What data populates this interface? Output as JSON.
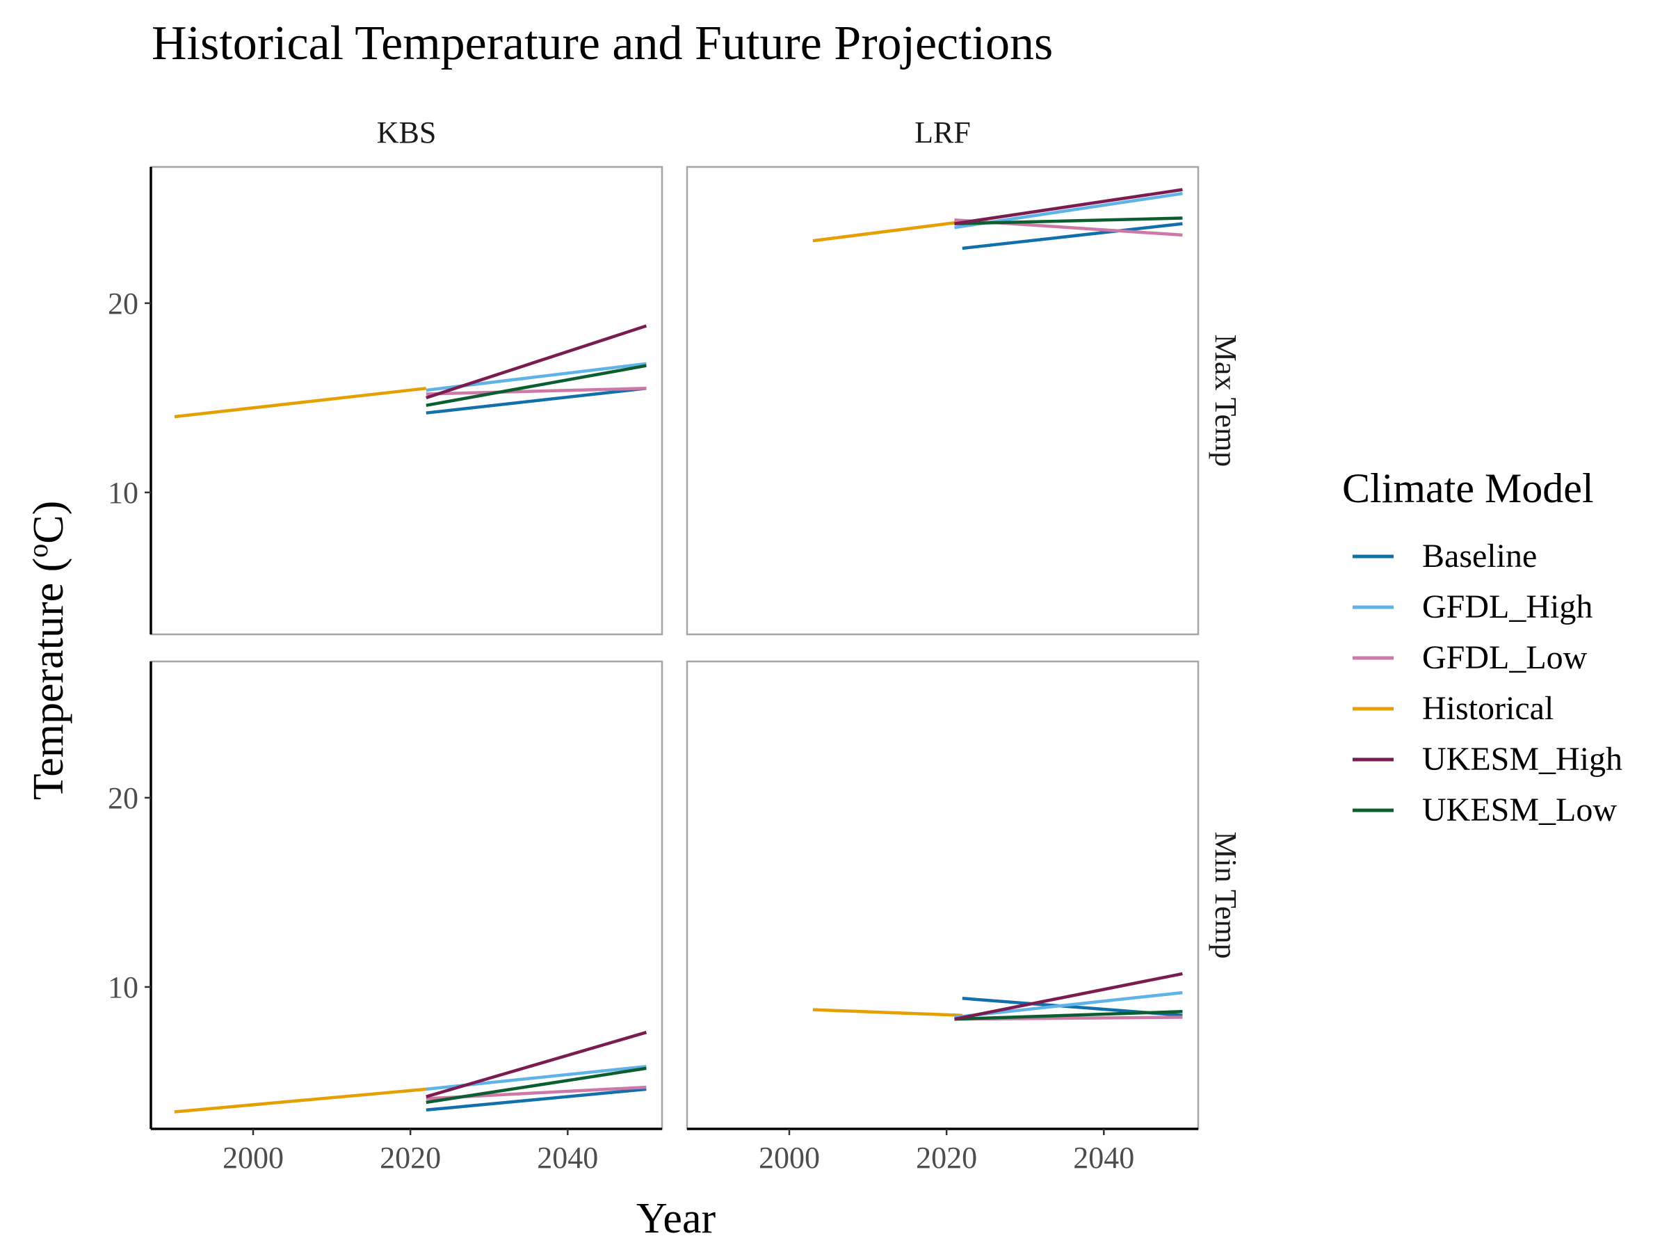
{
  "chart_data": {
    "type": "line",
    "title": "Historical Temperature and Future Projections",
    "xlabel": "Year",
    "ylabel_text": "Temperature (",
    "ylabel_degree": "o",
    "ylabel_unit": "C)",
    "xlim": [
      1987,
      2052
    ],
    "ylim": [
      2.5,
      27.2
    ],
    "x_ticks": [
      2000,
      2020,
      2040
    ],
    "y_ticks": [
      10,
      20
    ],
    "grid": false,
    "legend_position": "right",
    "legend_title": "Climate Model",
    "facet_columns": [
      "KBS",
      "LRF"
    ],
    "facet_rows": [
      "Max Temp",
      "Min Temp"
    ],
    "series_names": [
      "Baseline",
      "GFDL_High",
      "GFDL_Low",
      "Historical",
      "UKESM_High",
      "UKESM_Low"
    ],
    "series_colors": {
      "Baseline": "#1170AA",
      "GFDL_High": "#5FB3E6",
      "GFDL_Low": "#CC79A7",
      "Historical": "#E69F00",
      "UKESM_High": "#7A1C4F",
      "UKESM_Low": "#0B5E2F"
    },
    "panels": [
      {
        "col": "KBS",
        "row": "Max Temp",
        "series": [
          {
            "name": "Historical",
            "x": [
              1990,
              2022
            ],
            "y": [
              14.0,
              15.5
            ]
          },
          {
            "name": "Baseline",
            "x": [
              2022,
              2050
            ],
            "y": [
              14.2,
              15.5
            ]
          },
          {
            "name": "GFDL_High",
            "x": [
              2022,
              2050
            ],
            "y": [
              15.4,
              16.8
            ]
          },
          {
            "name": "GFDL_Low",
            "x": [
              2022,
              2050
            ],
            "y": [
              15.2,
              15.5
            ]
          },
          {
            "name": "UKESM_Low",
            "x": [
              2022,
              2050
            ],
            "y": [
              14.6,
              16.7
            ]
          },
          {
            "name": "UKESM_High",
            "x": [
              2022,
              2050
            ],
            "y": [
              15.0,
              18.8
            ]
          }
        ]
      },
      {
        "col": "LRF",
        "row": "Max Temp",
        "series": [
          {
            "name": "Historical",
            "x": [
              2003,
              2022
            ],
            "y": [
              23.3,
              24.3
            ]
          },
          {
            "name": "Baseline",
            "x": [
              2022,
              2050
            ],
            "y": [
              22.9,
              24.2
            ]
          },
          {
            "name": "GFDL_High",
            "x": [
              2021,
              2050
            ],
            "y": [
              24.0,
              25.8
            ]
          },
          {
            "name": "GFDL_Low",
            "x": [
              2021,
              2050
            ],
            "y": [
              24.4,
              23.6
            ]
          },
          {
            "name": "UKESM_Low",
            "x": [
              2021,
              2050
            ],
            "y": [
              24.2,
              24.5
            ]
          },
          {
            "name": "UKESM_High",
            "x": [
              2021,
              2050
            ],
            "y": [
              24.2,
              26.0
            ]
          }
        ]
      },
      {
        "col": "KBS",
        "row": "Min Temp",
        "series": [
          {
            "name": "Historical",
            "x": [
              1990,
              2022
            ],
            "y": [
              3.4,
              4.6
            ]
          },
          {
            "name": "Baseline",
            "x": [
              2022,
              2050
            ],
            "y": [
              3.5,
              4.6
            ]
          },
          {
            "name": "GFDL_High",
            "x": [
              2022,
              2050
            ],
            "y": [
              4.6,
              5.8
            ]
          },
          {
            "name": "GFDL_Low",
            "x": [
              2022,
              2050
            ],
            "y": [
              4.1,
              4.7
            ]
          },
          {
            "name": "UKESM_Low",
            "x": [
              2022,
              2050
            ],
            "y": [
              3.9,
              5.7
            ]
          },
          {
            "name": "UKESM_High",
            "x": [
              2022,
              2050
            ],
            "y": [
              4.2,
              7.6
            ]
          }
        ]
      },
      {
        "col": "LRF",
        "row": "Min Temp",
        "series": [
          {
            "name": "Historical",
            "x": [
              2003,
              2022
            ],
            "y": [
              8.8,
              8.5
            ]
          },
          {
            "name": "Baseline",
            "x": [
              2022,
              2050
            ],
            "y": [
              9.4,
              8.5
            ]
          },
          {
            "name": "GFDL_High",
            "x": [
              2021,
              2050
            ],
            "y": [
              8.4,
              9.7
            ]
          },
          {
            "name": "GFDL_Low",
            "x": [
              2021,
              2050
            ],
            "y": [
              8.3,
              8.4
            ]
          },
          {
            "name": "UKESM_Low",
            "x": [
              2021,
              2050
            ],
            "y": [
              8.3,
              8.7
            ]
          },
          {
            "name": "UKESM_High",
            "x": [
              2021,
              2050
            ],
            "y": [
              8.3,
              10.7
            ]
          }
        ]
      }
    ]
  }
}
